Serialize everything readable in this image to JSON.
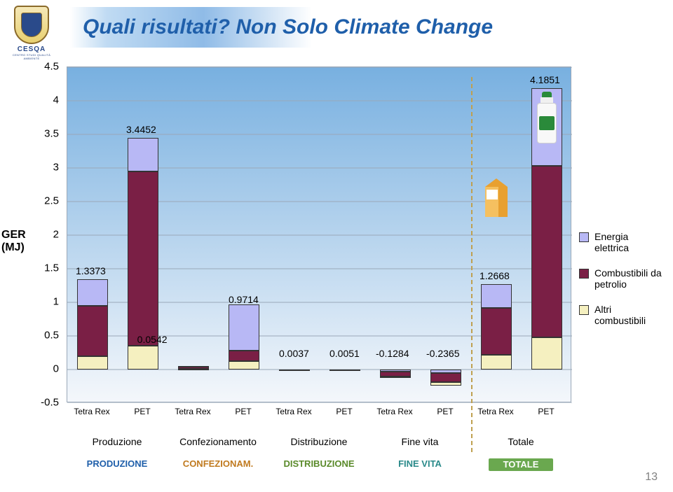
{
  "brand": {
    "name": "CESQA",
    "subtitle": "CENTRO STUDI QUALITÀ AMBIENTE"
  },
  "title": "Quali risultati? Non Solo Climate Change",
  "page_number": "13",
  "chart": {
    "type": "stacked-bar",
    "y_axis_label_line1": "GER",
    "y_axis_label_line2": "(MJ)",
    "ymin": -0.5,
    "ymax": 4.5,
    "ystep": 0.5,
    "yticks": [
      "-0.5",
      "0",
      "0.5",
      "1",
      "1.5",
      "2",
      "2.5",
      "3",
      "3.5",
      "4",
      "4.5"
    ],
    "bg_gradient_top": "#78b0e0",
    "bg_gradient_bottom": "#f4f7fb",
    "gridline_color": "#9aa8b8",
    "x_categories": [
      "Tetra Rex",
      "PET",
      "Tetra Rex",
      "PET",
      "Tetra Rex",
      "PET",
      "Tetra Rex",
      "PET",
      "Tetra Rex",
      "PET"
    ],
    "series_colors": {
      "energia": "#b8b8f5",
      "petrolio": "#7a1f45",
      "altri": "#f5f0c0"
    },
    "phase_label_colors": {
      "produzione": "#1f5faa",
      "confezionamento": "#c07a1f",
      "distribuzione": "#5a8a2a",
      "fine_vita": "#2a8a8a",
      "totale": "#5a8a2a"
    },
    "totale_box_color": "#6aa84f",
    "bars": [
      {
        "label": "1.3373",
        "segments": [
          {
            "k": "altri",
            "v": 0.2
          },
          {
            "k": "petrolio",
            "v": 0.75
          },
          {
            "k": "energia",
            "v": 0.39
          }
        ]
      },
      {
        "label": "3.4452",
        "segments": [
          {
            "k": "altri",
            "v": 0.35
          },
          {
            "k": "petrolio",
            "v": 2.6
          },
          {
            "k": "energia",
            "v": 0.5
          }
        ]
      },
      {
        "label": "0.0542",
        "segments": [
          {
            "k": "altri",
            "v": 0.012
          },
          {
            "k": "petrolio",
            "v": 0.03
          },
          {
            "k": "energia",
            "v": 0.012
          }
        ]
      },
      {
        "label": "0.9714",
        "segments": [
          {
            "k": "altri",
            "v": 0.12
          },
          {
            "k": "petrolio",
            "v": 0.16
          },
          {
            "k": "energia",
            "v": 0.69
          }
        ]
      },
      {
        "label": "0.0037",
        "segments": [
          {
            "k": "altri",
            "v": 0.0005
          },
          {
            "k": "petrolio",
            "v": 0.003
          },
          {
            "k": "energia",
            "v": 0.0002
          }
        ]
      },
      {
        "label": "0.0051",
        "segments": [
          {
            "k": "altri",
            "v": 0.0006
          },
          {
            "k": "petrolio",
            "v": 0.004
          },
          {
            "k": "energia",
            "v": 0.0005
          }
        ]
      },
      {
        "label": "-0.1284",
        "segments": [
          {
            "k": "energia",
            "v": -0.03
          },
          {
            "k": "petrolio",
            "v": -0.07
          },
          {
            "k": "altri",
            "v": -0.03
          }
        ]
      },
      {
        "label": "-0.2365",
        "segments": [
          {
            "k": "energia",
            "v": -0.05
          },
          {
            "k": "petrolio",
            "v": -0.14
          },
          {
            "k": "altri",
            "v": -0.05
          }
        ]
      },
      {
        "label": "1.2668",
        "segments": [
          {
            "k": "altri",
            "v": 0.22
          },
          {
            "k": "petrolio",
            "v": 0.7
          },
          {
            "k": "energia",
            "v": 0.35
          }
        ]
      },
      {
        "label": "4.1851",
        "segments": [
          {
            "k": "altri",
            "v": 0.48
          },
          {
            "k": "petrolio",
            "v": 2.55
          },
          {
            "k": "energia",
            "v": 1.16
          }
        ]
      }
    ],
    "phases": [
      {
        "label": "Produzione",
        "colored": "PRODUZIONE",
        "key": "produzione"
      },
      {
        "label": "Confezionamento",
        "colored": "CONFEZIONAM.",
        "key": "confezionamento"
      },
      {
        "label": "Distribuzione",
        "colored": "DISTRIBUZIONE",
        "key": "distribuzione"
      },
      {
        "label": "Fine vita",
        "colored": "FINE VITA",
        "key": "fine_vita"
      },
      {
        "label": "Totale",
        "colored": "TOTALE",
        "key": "totale"
      }
    ],
    "legend": [
      {
        "key": "energia",
        "label": "Energia elettrica"
      },
      {
        "key": "petrolio",
        "label": "Combustibili da petrolio"
      },
      {
        "key": "altri",
        "label": "Altri combustibili"
      }
    ]
  }
}
